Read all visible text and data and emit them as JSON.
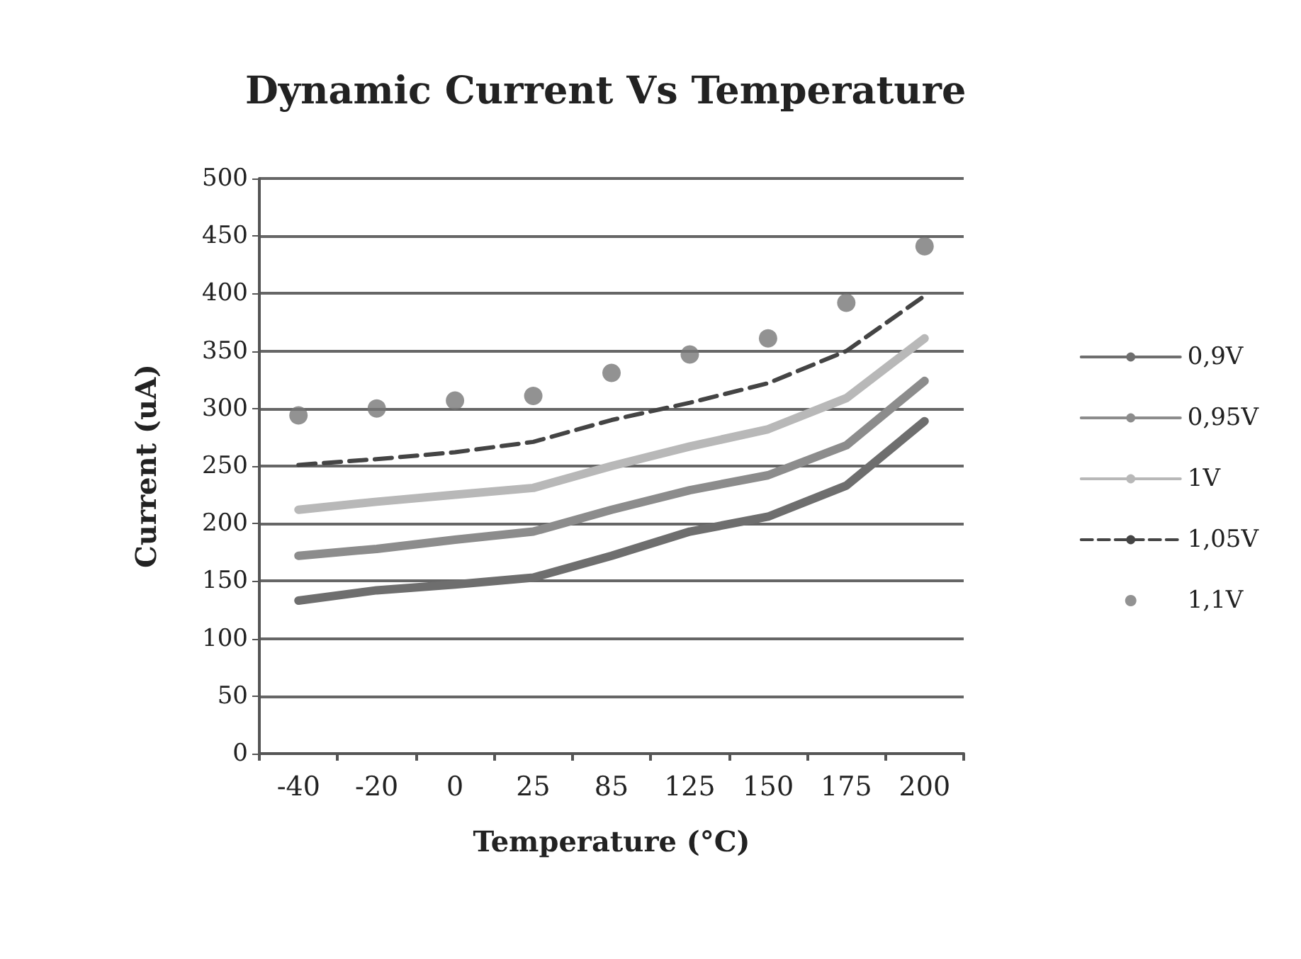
{
  "chart_data": {
    "type": "line",
    "title": "Dynamic Current Vs Temperature",
    "xlabel": "Temperature (°C)",
    "ylabel": "Current (uA)",
    "categories": [
      "-40",
      "-20",
      "0",
      "25",
      "85",
      "125",
      "150",
      "175",
      "200"
    ],
    "ylim": [
      0,
      500
    ],
    "yticks": [
      0,
      50,
      100,
      150,
      200,
      250,
      300,
      350,
      400,
      450,
      500
    ],
    "grid": "y",
    "legend": "right",
    "marker": "none",
    "series": [
      {
        "name": "0,9V",
        "color": "#6e6e6e",
        "values": [
          133,
          142,
          147,
          153,
          172,
          193,
          206,
          233,
          289
        ]
      },
      {
        "name": "0,95V",
        "color": "#8c8c8c",
        "values": [
          172,
          178,
          186,
          193,
          212,
          229,
          242,
          268,
          324
        ]
      },
      {
        "name": "1V",
        "color": "#b8b8b8",
        "values": [
          212,
          219,
          225,
          231,
          250,
          267,
          282,
          309,
          361
        ]
      },
      {
        "name": "1,05V",
        "color": "#444444",
        "line_style": "dashed",
        "values": [
          251,
          256,
          262,
          271,
          290,
          305,
          322,
          350,
          398
        ]
      },
      {
        "name": "1,1V",
        "type": "scatter",
        "marker": "circle",
        "color": "#777777",
        "values": [
          294,
          300,
          307,
          311,
          331,
          347,
          361,
          392,
          441
        ]
      }
    ]
  }
}
